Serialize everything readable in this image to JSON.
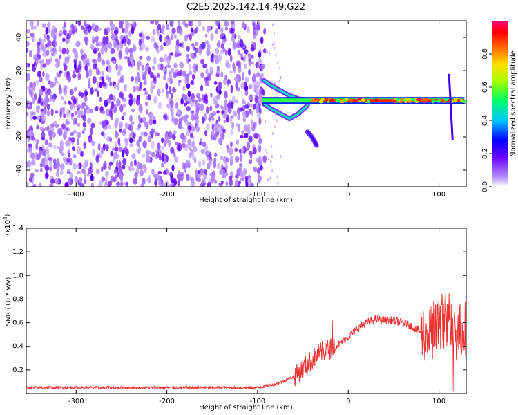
{
  "title": "C2E5.2025.142.14.49.G22",
  "colors": {
    "snr_line": "#ee3333",
    "spectrogram_base": "#7a1fe0",
    "axis": "#000000"
  },
  "chart_data": [
    {
      "type": "heatmap",
      "xlabel": "Height of straight line (km)",
      "ylabel": "Frequency (Hz)",
      "xlim": [
        -355,
        130
      ],
      "ylim": [
        -50,
        50
      ],
      "xticks": [
        -300,
        -200,
        -100,
        0,
        100
      ],
      "yticks": [
        -40,
        -20,
        0,
        20,
        40
      ],
      "colorbar": {
        "label": "Normalized spectral amplitude",
        "range": [
          0,
          1
        ],
        "ticks": [
          "0.0",
          "0.2",
          "0.4",
          "0.6",
          "0.8"
        ],
        "colormap": "rainbow (violet-blue-cyan-green-yellow-orange-red-magenta)"
      },
      "features": {
        "noise_region_x": [
          -355,
          -92
        ],
        "tone": {
          "x": [
            -95,
            128
          ],
          "frequency_hz": 2
        },
        "upper_branch": [
          [
            -93,
            14
          ],
          [
            -85,
            11
          ],
          [
            -75,
            8
          ],
          [
            -65,
            5
          ],
          [
            -55,
            3
          ],
          [
            -40,
            2
          ]
        ],
        "lower_branch": [
          [
            -93,
            0
          ],
          [
            -85,
            -3
          ],
          [
            -75,
            -6
          ],
          [
            -65,
            -9
          ],
          [
            -55,
            -6
          ],
          [
            -45,
            -1
          ]
        ],
        "faint_tail": [
          [
            -45,
            -17
          ],
          [
            -40,
            -20
          ],
          [
            -35,
            -25
          ]
        ],
        "spike_x": 111,
        "spike_range_hz": [
          -22,
          18
        ]
      }
    },
    {
      "type": "line",
      "xlabel": "Height of straight line (km)",
      "ylabel": "SNR (10 * v/v)",
      "y_scale_label": "(x10",
      "y_scale_exponent": "4",
      "xlim": [
        -355,
        130
      ],
      "ylim": [
        0,
        1.4
      ],
      "xticks": [
        -300,
        -200,
        -100,
        0,
        100
      ],
      "yticks": [
        0.2,
        0.4,
        0.6,
        0.8,
        1.0,
        1.2,
        1.4
      ],
      "ytick_labels": [
        "0.2",
        "0.4",
        "0.6",
        "0.8",
        "1.0",
        "1.2",
        "1.4"
      ],
      "series": [
        {
          "x": [
            -355,
            -100,
            -80,
            -60,
            -45,
            -35,
            -28,
            -20,
            -10,
            0,
            10,
            20,
            30,
            40,
            50,
            60,
            70,
            80,
            90,
            95,
            100,
            105,
            110,
            115,
            120,
            130
          ],
          "y": [
            0.05,
            0.05,
            0.08,
            0.14,
            0.25,
            0.32,
            0.36,
            0.38,
            0.42,
            0.48,
            0.55,
            0.6,
            0.63,
            0.62,
            0.62,
            0.6,
            0.57,
            0.52,
            0.5,
            0.55,
            0.6,
            0.62,
            0.65,
            0.55,
            0.5,
            0.57
          ]
        }
      ]
    }
  ]
}
